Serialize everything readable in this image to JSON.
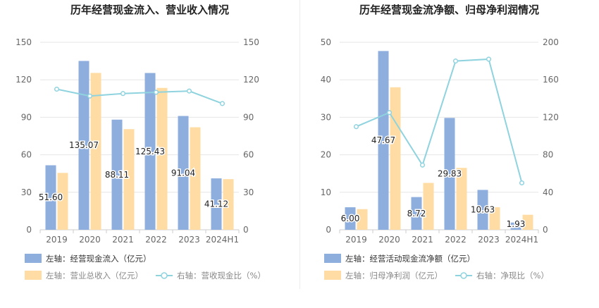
{
  "colors": {
    "bar_primary": "#8eaede",
    "bar_secondary": "#ffdca3",
    "line": "#8fd3df",
    "grid": "#e6e6e6",
    "axis": "#cccccc"
  },
  "chart_data": [
    {
      "type": "bar",
      "title": "历年经营现金流入、营业收入情况",
      "categories": [
        "2019",
        "2020",
        "2021",
        "2022",
        "2023",
        "2024H1"
      ],
      "left_axis": {
        "ylim": [
          0,
          150
        ],
        "ticks": [
          "0",
          "30",
          "60",
          "90",
          "120",
          "150"
        ]
      },
      "right_axis": {
        "ylim": [
          0,
          150
        ],
        "ticks": [
          "0",
          "30",
          "60",
          "90",
          "120",
          "150"
        ]
      },
      "series": [
        {
          "name": "左轴：经营现金流入（亿元）",
          "kind": "bar",
          "axis": "left",
          "values": [
            51.6,
            135.07,
            88.11,
            125.43,
            91.04,
            41.12
          ],
          "data_labels": [
            "51.60",
            "135.07",
            "88.11",
            "125.43",
            "91.04",
            "41.12"
          ]
        },
        {
          "name": "左轴：营业总收入（亿元）",
          "kind": "bar",
          "axis": "left",
          "values": [
            45.5,
            125.5,
            80.5,
            113.5,
            82,
            40.5
          ]
        },
        {
          "name": "右轴：营收现金比（%）",
          "kind": "line",
          "axis": "right",
          "values": [
            112.5,
            107,
            109,
            110,
            111,
            101
          ]
        }
      ],
      "legend": {
        "placement": "bottom-left",
        "rows": [
          [
            0
          ],
          [
            1,
            2
          ]
        ]
      }
    },
    {
      "type": "bar",
      "title": "历年经营现金流净额、归母净利润情况",
      "categories": [
        "2019",
        "2020",
        "2021",
        "2022",
        "2023",
        "2024H1"
      ],
      "left_axis": {
        "ylim": [
          0,
          50
        ],
        "ticks": [
          "0",
          "10",
          "20",
          "30",
          "40",
          "50"
        ]
      },
      "right_axis": {
        "ylim": [
          0,
          200
        ],
        "ticks": [
          "0",
          "40",
          "80",
          "120",
          "160",
          "200"
        ]
      },
      "series": [
        {
          "name": "左轴：经营活动现金流净额（亿元）",
          "kind": "bar",
          "axis": "left",
          "values": [
            6.0,
            47.67,
            8.72,
            29.83,
            10.63,
            1.93
          ],
          "data_labels": [
            "6.00",
            "47.67",
            "8.72",
            "29.83",
            "10.63",
            "1.93"
          ]
        },
        {
          "name": "左轴：归母净利润（亿元）",
          "kind": "bar",
          "axis": "left",
          "values": [
            5.5,
            38,
            12.5,
            16.5,
            6,
            4
          ]
        },
        {
          "name": "右轴：净现比（%）",
          "kind": "line",
          "axis": "right",
          "values": [
            110,
            125,
            69,
            180,
            182,
            50
          ]
        }
      ],
      "legend": {
        "placement": "bottom-left",
        "rows": [
          [
            0
          ],
          [
            1,
            2
          ]
        ]
      }
    }
  ]
}
